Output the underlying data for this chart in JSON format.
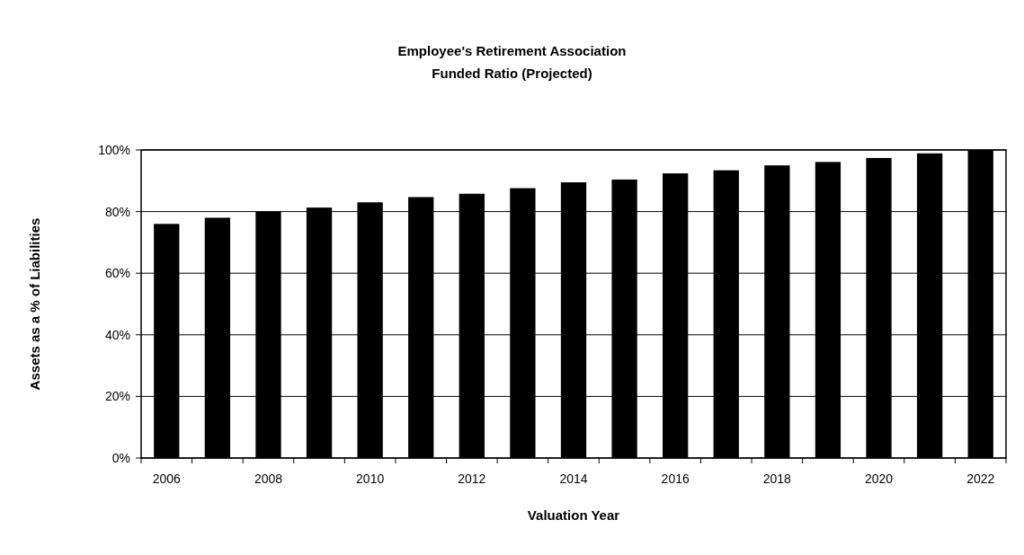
{
  "chart_data": {
    "type": "bar",
    "title": "Employee's Retirement Association",
    "subtitle": "Funded Ratio (Projected)",
    "xlabel": "Valuation Year",
    "ylabel": "Assets as a % of Liabilities",
    "categories": [
      "2006",
      null,
      "2008",
      null,
      "2010",
      null,
      "2012",
      null,
      "2014",
      null,
      "2016",
      null,
      "2018",
      null,
      "2020",
      null,
      "2022"
    ],
    "values": [
      76,
      78,
      80,
      81.3,
      83,
      84.7,
      85.8,
      87.6,
      89.5,
      90.4,
      92.4,
      93.4,
      95,
      96.1,
      97.4,
      98.9,
      100
    ],
    "color": "#000000",
    "ylim": [
      0,
      100
    ],
    "yticks": [
      {
        "value": 0,
        "label": "0%"
      },
      {
        "value": 20,
        "label": "20%"
      },
      {
        "value": 40,
        "label": "40%"
      },
      {
        "value": 60,
        "label": "60%"
      },
      {
        "value": 80,
        "label": "80%"
      },
      {
        "value": 100,
        "label": "100%"
      }
    ],
    "grid": "y"
  }
}
